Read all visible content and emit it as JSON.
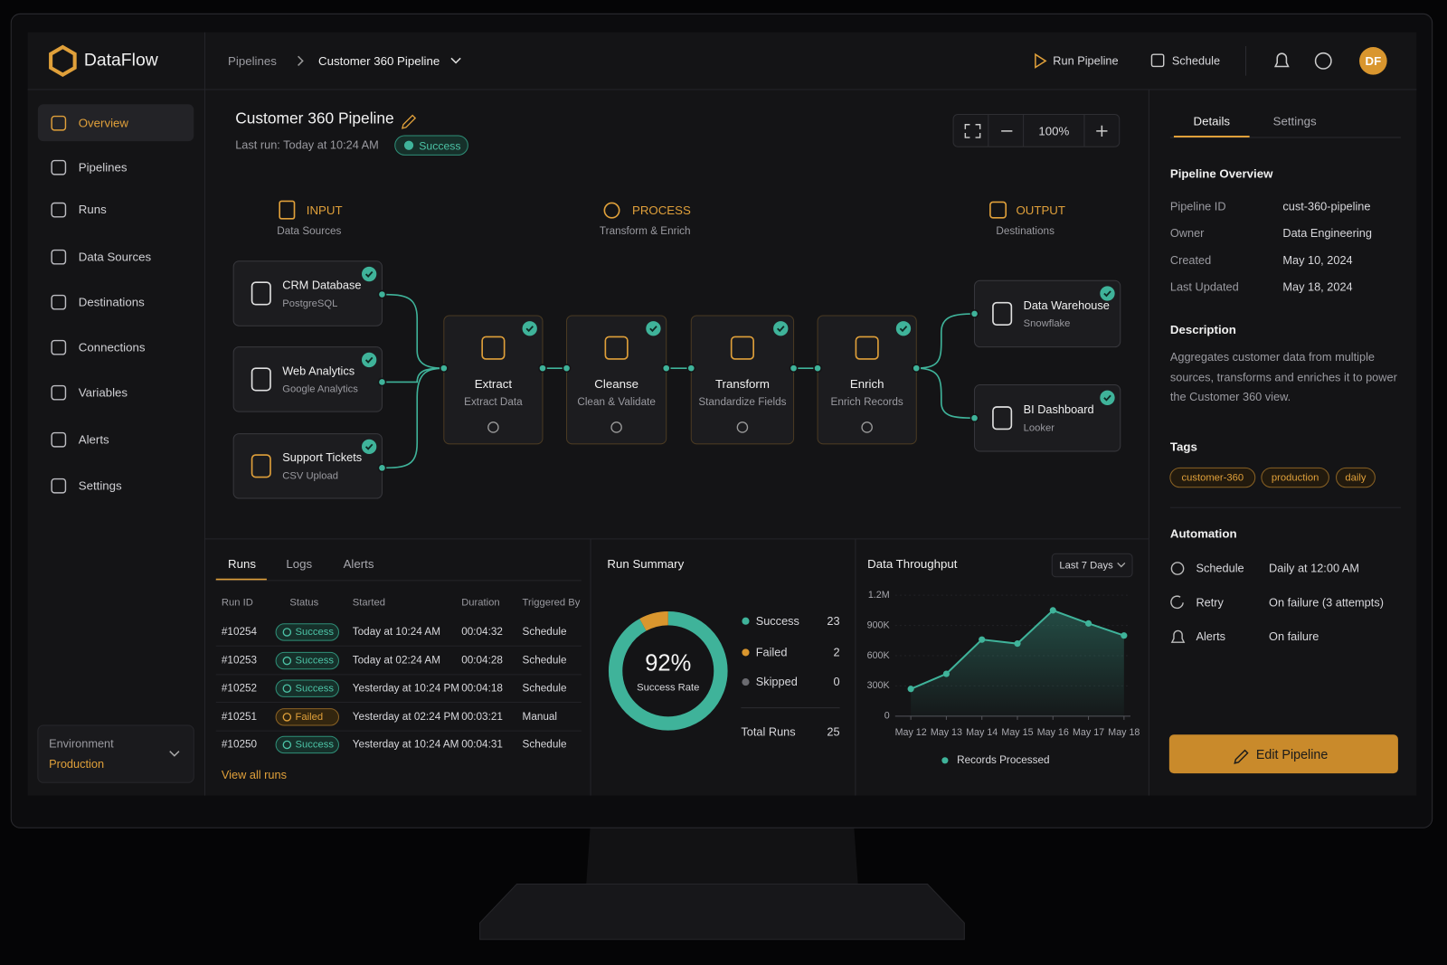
{
  "header": {
    "brand": "DataFlow",
    "breadcrumb": [
      "Pipelines",
      "Customer 360 Pipeline"
    ],
    "actions": [
      "Run Pipeline",
      "Schedule"
    ],
    "avatar": "DF"
  },
  "sidebar": {
    "items": [
      "Overview",
      "Pipelines",
      "Runs",
      "Data Sources",
      "Destinations",
      "Connections",
      "Variables",
      "Alerts",
      "Settings"
    ],
    "environment_label": "Environment",
    "environment": "Production"
  },
  "pipeline": {
    "title": "Customer 360 Pipeline",
    "last_run": "Last run: Today at 10:24 AM",
    "status": "Success",
    "zoom": "100%"
  },
  "stages": [
    {
      "title": "INPUT",
      "subtitle": "Data Sources"
    },
    {
      "title": "PROCESS",
      "subtitle": "Transform & Enrich"
    },
    {
      "title": "OUTPUT",
      "subtitle": "Destinations"
    }
  ],
  "nodes": [
    {
      "label": "CRM Database",
      "sub": "PostgreSQL"
    },
    {
      "label": "Web Analytics",
      "sub": "Google Analytics"
    },
    {
      "label": "Support Tickets",
      "sub": "CSV Upload"
    },
    {
      "label": "Extract",
      "sub": "Extract Data"
    },
    {
      "label": "Cleanse",
      "sub": "Clean & Validate"
    },
    {
      "label": "Transform",
      "sub": "Standardize Fields"
    },
    {
      "label": "Enrich",
      "sub": "Enrich Records"
    },
    {
      "label": "Data Warehouse",
      "sub": "Snowflake"
    },
    {
      "label": "BI Dashboard",
      "sub": "Looker"
    }
  ],
  "runs_panel": {
    "tabs": [
      "Runs",
      "Logs",
      "Alerts"
    ],
    "columns": [
      "Run ID",
      "Status",
      "Started",
      "Duration",
      "Triggered By"
    ],
    "rows": [
      [
        "#10254",
        "Success",
        "Today at 10:24 AM",
        "00:04:32",
        "Schedule"
      ],
      [
        "#10253",
        "Success",
        "Today at 02:24 AM",
        "00:04:28",
        "Schedule"
      ],
      [
        "#10252",
        "Success",
        "Yesterday at 10:24 PM",
        "00:04:18",
        "Schedule"
      ],
      [
        "#10251",
        "Failed",
        "Yesterday at 02:24 PM",
        "00:03:21",
        "Manual"
      ],
      [
        "#10250",
        "Success",
        "Yesterday at 10:24 AM",
        "00:04:31",
        "Schedule"
      ]
    ],
    "footer": "View all runs"
  },
  "run_summary": {
    "title": "Run Summary",
    "success_rate": "92%",
    "success_rate_label": "Success Rate",
    "items": [
      {
        "name": "Success",
        "count": 23,
        "color": "#3fb39a"
      },
      {
        "name": "Failed",
        "count": 2,
        "color": "#d9962e"
      },
      {
        "name": "Skipped",
        "count": 0,
        "color": "#6b6b70"
      }
    ],
    "total_label": "Total Runs",
    "total": 25
  },
  "chart_data": {
    "type": "line",
    "title": "Data Throughput",
    "filter": "Last 7 Days",
    "x": [
      "May 12",
      "May 13",
      "May 14",
      "May 15",
      "May 16",
      "May 17",
      "May 18"
    ],
    "series": [
      {
        "name": "Records Processed",
        "color": "#3fb39a",
        "values": [
          270000,
          420000,
          760000,
          720000,
          1050000,
          920000,
          800000
        ]
      }
    ],
    "ylim": [
      0,
      1200000
    ],
    "yticks": [
      0,
      {
        "value": 300000,
        "label": "300K"
      },
      {
        "value": 600000,
        "label": "600K"
      },
      {
        "value": 900000,
        "label": "900K"
      },
      {
        "value": 1200000,
        "label": "1.2M"
      }
    ]
  },
  "details": {
    "tabs": [
      "Details",
      "Settings"
    ],
    "overview_title": "Pipeline Overview",
    "fields": [
      [
        "Pipeline ID",
        "cust-360-pipeline"
      ],
      [
        "Owner",
        "Data Engineering"
      ],
      [
        "Created",
        "May 10, 2024"
      ],
      [
        "Last Updated",
        "May 18, 2024"
      ]
    ],
    "description_title": "Description",
    "description": "Aggregates customer data from multiple sources, transforms and enriches it to power the Customer 360 view.",
    "tags_title": "Tags",
    "tags": [
      "customer-360",
      "production",
      "daily"
    ],
    "automation_title": "Automation",
    "automation": [
      [
        "Schedule",
        "Daily at 12:00 AM"
      ],
      [
        "Retry",
        "On failure (3 attempts)"
      ],
      [
        "Alerts",
        "On failure"
      ]
    ],
    "edit_button": "Edit Pipeline"
  }
}
